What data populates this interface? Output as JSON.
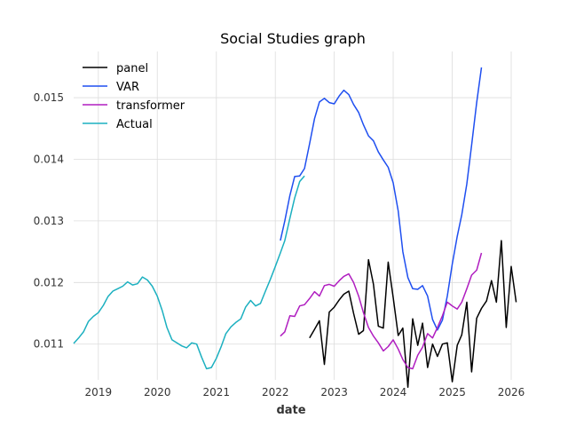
{
  "chart_data": {
    "type": "line",
    "title": "Social Studies graph",
    "xlabel": "date",
    "ylabel": "",
    "x_axis": "date",
    "xlim": [
      "2018-08-01",
      "2026-01-01"
    ],
    "ylim": [
      0.01042,
      0.01575
    ],
    "x_ticks": [
      {
        "date": "2019-01-01",
        "label": "2019"
      },
      {
        "date": "2020-01-01",
        "label": "2020"
      },
      {
        "date": "2021-01-01",
        "label": "2021"
      },
      {
        "date": "2022-01-01",
        "label": "2022"
      },
      {
        "date": "2023-01-01",
        "label": "2023"
      },
      {
        "date": "2024-01-01",
        "label": "2024"
      },
      {
        "date": "2025-01-01",
        "label": "2025"
      },
      {
        "date": "2026-01-01",
        "label": "2026"
      }
    ],
    "y_ticks": [
      {
        "value": 0.011,
        "label": "0.011"
      },
      {
        "value": 0.012,
        "label": "0.012"
      },
      {
        "value": 0.013,
        "label": "0.013"
      },
      {
        "value": 0.014,
        "label": "0.014"
      },
      {
        "value": 0.015,
        "label": "0.015"
      }
    ],
    "grid": true,
    "legend_position": "top-left",
    "series": [
      {
        "name": "panel",
        "color": "#000000",
        "points": [
          [
            "2022-08-01",
            0.0111
          ],
          [
            "2022-09-01",
            0.01124
          ],
          [
            "2022-10-01",
            0.01138
          ],
          [
            "2022-11-01",
            0.01067
          ],
          [
            "2022-12-01",
            0.01152
          ],
          [
            "2023-01-01",
            0.0116
          ],
          [
            "2023-02-01",
            0.01172
          ],
          [
            "2023-03-01",
            0.01181
          ],
          [
            "2023-04-01",
            0.01186
          ],
          [
            "2023-05-01",
            0.0115
          ],
          [
            "2023-06-01",
            0.01116
          ],
          [
            "2023-07-01",
            0.01122
          ],
          [
            "2023-08-01",
            0.01237
          ],
          [
            "2023-09-01",
            0.01197
          ],
          [
            "2023-10-01",
            0.01129
          ],
          [
            "2023-11-01",
            0.01126
          ],
          [
            "2023-12-01",
            0.01233
          ],
          [
            "2024-01-01",
            0.01176
          ],
          [
            "2024-02-01",
            0.01114
          ],
          [
            "2024-03-01",
            0.01126
          ],
          [
            "2024-04-01",
            0.0103
          ],
          [
            "2024-05-01",
            0.01141
          ],
          [
            "2024-06-01",
            0.01098
          ],
          [
            "2024-07-01",
            0.01134
          ],
          [
            "2024-08-01",
            0.01062
          ],
          [
            "2024-09-01",
            0.011
          ],
          [
            "2024-10-01",
            0.0108
          ],
          [
            "2024-11-01",
            0.011
          ],
          [
            "2024-12-01",
            0.01102
          ],
          [
            "2025-01-01",
            0.01039
          ],
          [
            "2025-02-01",
            0.01098
          ],
          [
            "2025-03-01",
            0.01115
          ],
          [
            "2025-04-01",
            0.01168
          ],
          [
            "2025-05-01",
            0.01055
          ],
          [
            "2025-06-01",
            0.01142
          ],
          [
            "2025-07-01",
            0.01158
          ],
          [
            "2025-08-01",
            0.0117
          ],
          [
            "2025-09-01",
            0.01203
          ],
          [
            "2025-10-01",
            0.01168
          ],
          [
            "2025-11-01",
            0.01268
          ],
          [
            "2025-12-01",
            0.01127
          ],
          [
            "2026-01-01",
            0.01226
          ],
          [
            "2026-02-01",
            0.01168
          ]
        ]
      },
      {
        "name": "VAR",
        "color": "#1f4ff0",
        "points": [
          [
            "2022-02-01",
            0.01268
          ],
          [
            "2022-03-01",
            0.013
          ],
          [
            "2022-04-01",
            0.01341
          ],
          [
            "2022-05-01",
            0.01372
          ],
          [
            "2022-06-01",
            0.01373
          ],
          [
            "2022-07-01",
            0.01385
          ],
          [
            "2022-08-01",
            0.01425
          ],
          [
            "2022-09-01",
            0.01466
          ],
          [
            "2022-10-01",
            0.01493
          ],
          [
            "2022-11-01",
            0.01499
          ],
          [
            "2022-12-01",
            0.01492
          ],
          [
            "2023-01-01",
            0.0149
          ],
          [
            "2023-02-01",
            0.01503
          ],
          [
            "2023-03-01",
            0.01512
          ],
          [
            "2023-04-01",
            0.01505
          ],
          [
            "2023-05-01",
            0.01489
          ],
          [
            "2023-06-01",
            0.01476
          ],
          [
            "2023-07-01",
            0.01456
          ],
          [
            "2023-08-01",
            0.01438
          ],
          [
            "2023-09-01",
            0.0143
          ],
          [
            "2023-10-01",
            0.01412
          ],
          [
            "2023-11-01",
            0.01399
          ],
          [
            "2023-12-01",
            0.01387
          ],
          [
            "2024-01-01",
            0.01362
          ],
          [
            "2024-02-01",
            0.01316
          ],
          [
            "2024-03-01",
            0.0125
          ],
          [
            "2024-04-01",
            0.01208
          ],
          [
            "2024-05-01",
            0.0119
          ],
          [
            "2024-06-01",
            0.01189
          ],
          [
            "2024-07-01",
            0.01195
          ],
          [
            "2024-08-01",
            0.01178
          ],
          [
            "2024-09-01",
            0.0114
          ],
          [
            "2024-10-01",
            0.01123
          ],
          [
            "2024-11-01",
            0.01139
          ],
          [
            "2024-12-01",
            0.01178
          ],
          [
            "2025-01-01",
            0.0123
          ],
          [
            "2025-02-01",
            0.01275
          ],
          [
            "2025-03-01",
            0.0131
          ],
          [
            "2025-04-01",
            0.0136
          ],
          [
            "2025-05-01",
            0.01423
          ],
          [
            "2025-06-01",
            0.01492
          ],
          [
            "2025-07-01",
            0.01549
          ]
        ]
      },
      {
        "name": "transformer",
        "color": "#b01ec0",
        "points": [
          [
            "2022-02-01",
            0.01113
          ],
          [
            "2022-03-01",
            0.0112
          ],
          [
            "2022-04-01",
            0.01146
          ],
          [
            "2022-05-01",
            0.01145
          ],
          [
            "2022-06-01",
            0.01162
          ],
          [
            "2022-07-01",
            0.01164
          ],
          [
            "2022-08-01",
            0.01174
          ],
          [
            "2022-09-01",
            0.01185
          ],
          [
            "2022-10-01",
            0.01178
          ],
          [
            "2022-11-01",
            0.01195
          ],
          [
            "2022-12-01",
            0.01197
          ],
          [
            "2023-01-01",
            0.01194
          ],
          [
            "2023-02-01",
            0.01203
          ],
          [
            "2023-03-01",
            0.0121
          ],
          [
            "2023-04-01",
            0.01214
          ],
          [
            "2023-05-01",
            0.012
          ],
          [
            "2023-06-01",
            0.01178
          ],
          [
            "2023-07-01",
            0.01151
          ],
          [
            "2023-08-01",
            0.01127
          ],
          [
            "2023-09-01",
            0.01113
          ],
          [
            "2023-10-01",
            0.01102
          ],
          [
            "2023-11-01",
            0.01089
          ],
          [
            "2023-12-01",
            0.01096
          ],
          [
            "2024-01-01",
            0.01107
          ],
          [
            "2024-02-01",
            0.01092
          ],
          [
            "2024-03-01",
            0.01075
          ],
          [
            "2024-04-01",
            0.01062
          ],
          [
            "2024-05-01",
            0.0106
          ],
          [
            "2024-06-01",
            0.01082
          ],
          [
            "2024-07-01",
            0.01095
          ],
          [
            "2024-08-01",
            0.01117
          ],
          [
            "2024-09-01",
            0.0111
          ],
          [
            "2024-10-01",
            0.01127
          ],
          [
            "2024-11-01",
            0.01146
          ],
          [
            "2024-12-01",
            0.01168
          ],
          [
            "2025-01-01",
            0.01162
          ],
          [
            "2025-02-01",
            0.01157
          ],
          [
            "2025-03-01",
            0.01168
          ],
          [
            "2025-04-01",
            0.0119
          ],
          [
            "2025-05-01",
            0.01212
          ],
          [
            "2025-06-01",
            0.0122
          ],
          [
            "2025-07-01",
            0.01248
          ]
        ]
      },
      {
        "name": "Actual",
        "color": "#1cb0c0",
        "points": [
          [
            "2018-08-01",
            0.01101
          ],
          [
            "2018-09-01",
            0.0111
          ],
          [
            "2018-10-01",
            0.0112
          ],
          [
            "2018-11-01",
            0.01137
          ],
          [
            "2018-12-01",
            0.01145
          ],
          [
            "2019-01-01",
            0.01151
          ],
          [
            "2019-02-01",
            0.01163
          ],
          [
            "2019-03-01",
            0.01177
          ],
          [
            "2019-04-01",
            0.01186
          ],
          [
            "2019-05-01",
            0.0119
          ],
          [
            "2019-06-01",
            0.01194
          ],
          [
            "2019-07-01",
            0.01201
          ],
          [
            "2019-08-01",
            0.01196
          ],
          [
            "2019-09-01",
            0.01198
          ],
          [
            "2019-10-01",
            0.01209
          ],
          [
            "2019-11-01",
            0.01204
          ],
          [
            "2019-12-01",
            0.01194
          ],
          [
            "2020-01-01",
            0.01178
          ],
          [
            "2020-02-01",
            0.01154
          ],
          [
            "2020-03-01",
            0.01127
          ],
          [
            "2020-04-01",
            0.01107
          ],
          [
            "2020-05-01",
            0.01102
          ],
          [
            "2020-06-01",
            0.01097
          ],
          [
            "2020-07-01",
            0.01094
          ],
          [
            "2020-08-01",
            0.01102
          ],
          [
            "2020-09-01",
            0.011
          ],
          [
            "2020-10-01",
            0.01079
          ],
          [
            "2020-11-01",
            0.0106
          ],
          [
            "2020-12-01",
            0.01062
          ],
          [
            "2021-01-01",
            0.01077
          ],
          [
            "2021-02-01",
            0.01097
          ],
          [
            "2021-03-01",
            0.01117
          ],
          [
            "2021-04-01",
            0.01128
          ],
          [
            "2021-05-01",
            0.01135
          ],
          [
            "2021-06-01",
            0.01141
          ],
          [
            "2021-07-01",
            0.0116
          ],
          [
            "2021-08-01",
            0.01171
          ],
          [
            "2021-09-01",
            0.01162
          ],
          [
            "2021-10-01",
            0.01166
          ],
          [
            "2021-11-01",
            0.01186
          ],
          [
            "2021-12-01",
            0.01205
          ],
          [
            "2022-01-01",
            0.01226
          ],
          [
            "2022-02-01",
            0.01248
          ],
          [
            "2022-03-01",
            0.01268
          ],
          [
            "2022-04-01",
            0.01304
          ],
          [
            "2022-05-01",
            0.01337
          ],
          [
            "2022-06-01",
            0.01364
          ],
          [
            "2022-07-01",
            0.01373
          ]
        ]
      }
    ]
  }
}
